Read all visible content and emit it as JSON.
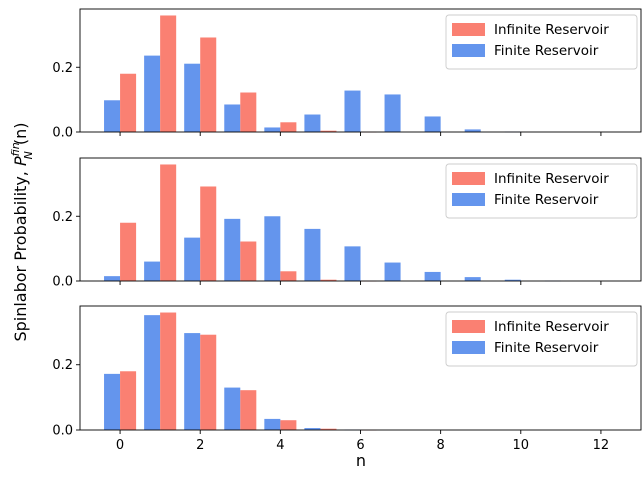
{
  "chart_data": {
    "type": "bar",
    "xlabel": "n",
    "ylabel": {
      "prefix": "Spinlabor Probability, ",
      "symbol": "P",
      "subscript": "N",
      "superscript": "fin",
      "suffix": "(n)"
    },
    "xlim": [
      -1.0,
      13.0
    ],
    "xticks": [
      0,
      2,
      4,
      6,
      8,
      10,
      12
    ],
    "yticks": [
      0.0,
      0.2
    ],
    "ylim": [
      0,
      0.38
    ],
    "grid": false,
    "legend_position": "top-right",
    "colors": {
      "Infinite Reservoir": "#fa8072",
      "Finite Reservoir": "#6495ed"
    },
    "panels": [
      {
        "series": [
          {
            "name": "Infinite Reservoir",
            "x": [
              0,
              1,
              2,
              3,
              4,
              5,
              6,
              7,
              8,
              9,
              10,
              11,
              12
            ],
            "values": [
              0.18,
              0.36,
              0.292,
              0.122,
              0.03,
              0.004,
              0.0005,
              0.0,
              0.0,
              0.0,
              0.0,
              0.0,
              0.0
            ]
          },
          {
            "name": "Finite Reservoir",
            "x": [
              0,
              1,
              2,
              3,
              4,
              5,
              6,
              7,
              8,
              9,
              10,
              11,
              12
            ],
            "values": [
              0.098,
              0.236,
              0.211,
              0.085,
              0.014,
              0.054,
              0.128,
              0.116,
              0.048,
              0.008,
              0.001,
              0.0,
              0.0
            ]
          }
        ]
      },
      {
        "series": [
          {
            "name": "Infinite Reservoir",
            "x": [
              0,
              1,
              2,
              3,
              4,
              5,
              6,
              7,
              8,
              9,
              10,
              11,
              12
            ],
            "values": [
              0.18,
              0.36,
              0.292,
              0.122,
              0.03,
              0.004,
              0.0005,
              0.0,
              0.0,
              0.0,
              0.0,
              0.0,
              0.0
            ]
          },
          {
            "name": "Finite Reservoir",
            "x": [
              0,
              1,
              2,
              3,
              4,
              5,
              6,
              7,
              8,
              9,
              10,
              11,
              12
            ],
            "values": [
              0.015,
              0.06,
              0.134,
              0.192,
              0.2,
              0.161,
              0.107,
              0.057,
              0.028,
              0.012,
              0.004,
              0.001,
              0.0
            ]
          }
        ]
      },
      {
        "series": [
          {
            "name": "Infinite Reservoir",
            "x": [
              0,
              1,
              2,
              3,
              4,
              5,
              6,
              7,
              8,
              9,
              10,
              11,
              12
            ],
            "values": [
              0.18,
              0.36,
              0.292,
              0.122,
              0.03,
              0.004,
              0.0005,
              0.0,
              0.0,
              0.0,
              0.0,
              0.0,
              0.0
            ]
          },
          {
            "name": "Finite Reservoir",
            "x": [
              0,
              1,
              2,
              3,
              4,
              5,
              6,
              7,
              8,
              9,
              10,
              11,
              12
            ],
            "values": [
              0.172,
              0.352,
              0.297,
              0.13,
              0.034,
              0.006,
              0.001,
              0.0,
              0.0,
              0.0,
              0.0,
              0.0,
              0.0
            ]
          }
        ]
      }
    ]
  }
}
